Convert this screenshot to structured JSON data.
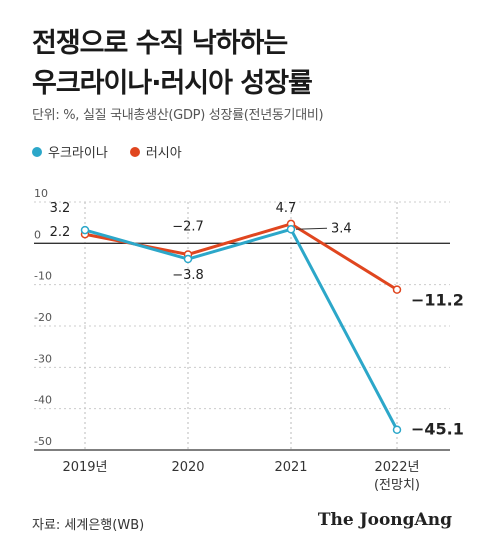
{
  "title_line1": "전쟁으로 수직 낙하하는",
  "title_line2": "우크라이나·러시아 성장률",
  "subtitle": "단위: %, 실질 국내총생산(GDP) 성장률(전년동기대비)",
  "source": "자료: 세계은행(WB)",
  "brand": "The JoongAng",
  "chart_data": {
    "type": "line",
    "categories": [
      "2019년",
      "2020",
      "2021",
      "2022년"
    ],
    "category_sub": [
      "",
      "",
      "",
      "(전망치)"
    ],
    "yticks": [
      "10",
      "0",
      "-10",
      "-20",
      "-30",
      "-40",
      "-50"
    ],
    "ylim": [
      -50,
      10
    ],
    "grid": true,
    "legend_position": "top-left",
    "series": [
      {
        "name": "우크라이나",
        "color": "#2ca7c9",
        "values": [
          3.2,
          -3.8,
          3.4,
          -45.1
        ],
        "labels": [
          "3.2",
          "−3.8",
          "3.4",
          "−45.1"
        ]
      },
      {
        "name": "러시아",
        "color": "#e0461f",
        "values": [
          2.2,
          -2.7,
          4.7,
          -11.2
        ],
        "labels": [
          "2.2",
          "−2.7",
          "4.7",
          "−11.2"
        ]
      }
    ]
  }
}
